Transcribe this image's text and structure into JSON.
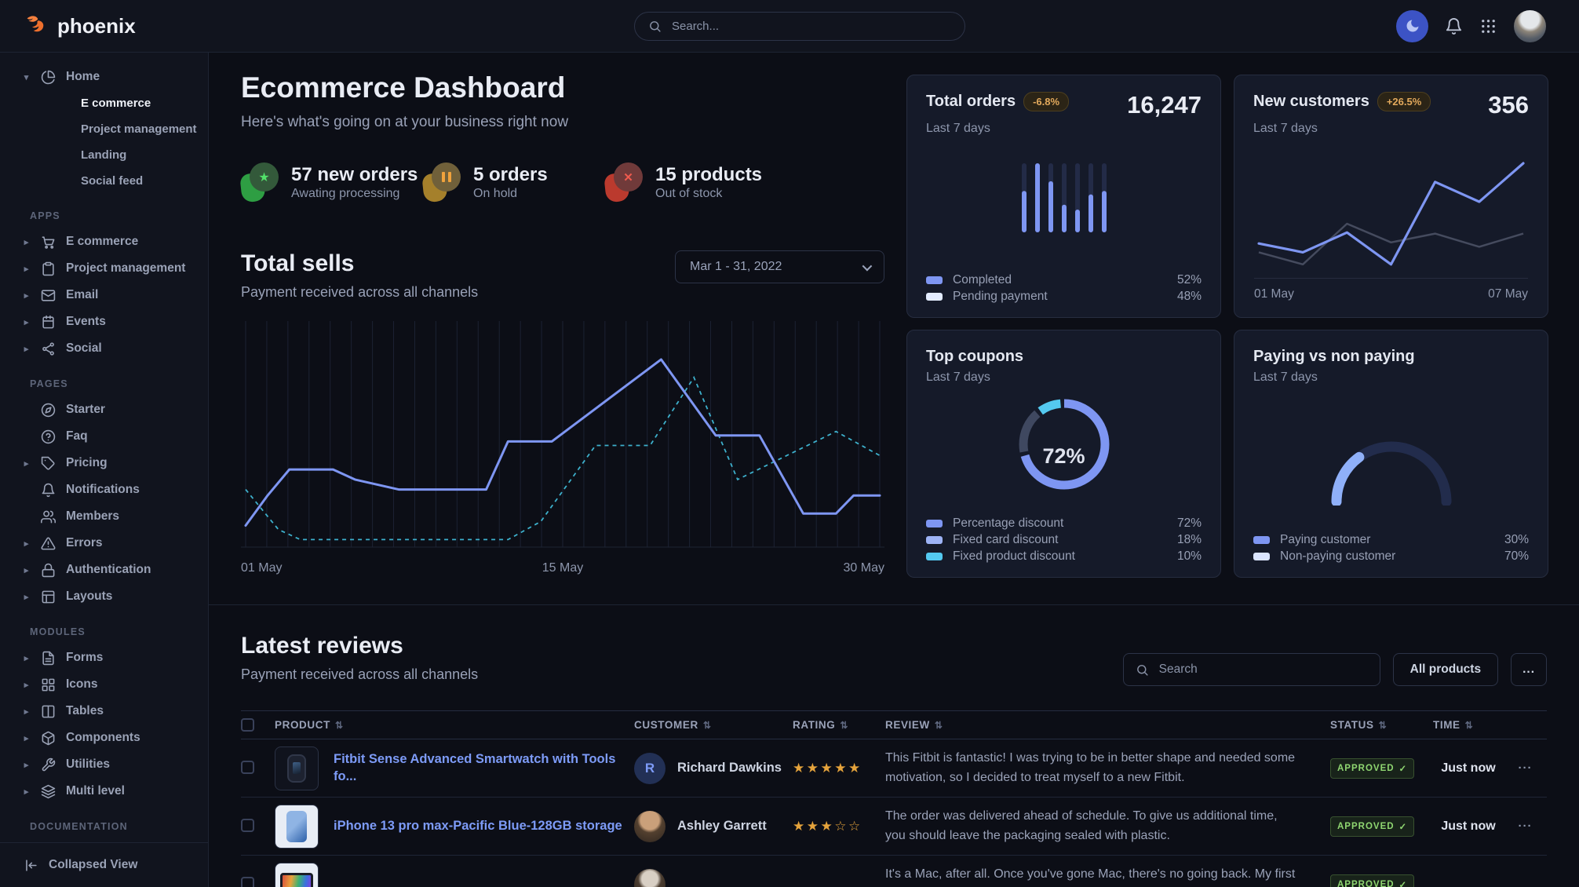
{
  "navbar": {
    "brand": "phoenix",
    "search_placeholder": "Search..."
  },
  "sidebar": {
    "home": {
      "label": "Home",
      "children": [
        {
          "label": "E commerce",
          "active": true
        },
        {
          "label": "Project management",
          "active": false
        },
        {
          "label": "Landing",
          "active": false
        },
        {
          "label": "Social feed",
          "active": false
        }
      ]
    },
    "sections": [
      {
        "label": "APPS",
        "items": [
          {
            "label": "E commerce",
            "icon": "cart",
            "caret": true
          },
          {
            "label": "Project management",
            "icon": "clipboard",
            "caret": true
          },
          {
            "label": "Email",
            "icon": "mail",
            "caret": true
          },
          {
            "label": "Events",
            "icon": "calendar",
            "caret": true
          },
          {
            "label": "Social",
            "icon": "share",
            "caret": true
          }
        ]
      },
      {
        "label": "PAGES",
        "items": [
          {
            "label": "Starter",
            "icon": "compass",
            "caret": false
          },
          {
            "label": "Faq",
            "icon": "help",
            "caret": false
          },
          {
            "label": "Pricing",
            "icon": "tag",
            "caret": true
          },
          {
            "label": "Notifications",
            "icon": "bell",
            "caret": false
          },
          {
            "label": "Members",
            "icon": "users",
            "caret": false
          },
          {
            "label": "Errors",
            "icon": "alert",
            "caret": true
          },
          {
            "label": "Authentication",
            "icon": "lock",
            "caret": true
          },
          {
            "label": "Layouts",
            "icon": "layout",
            "caret": true
          }
        ]
      },
      {
        "label": "MODULES",
        "items": [
          {
            "label": "Forms",
            "icon": "file",
            "caret": true
          },
          {
            "label": "Icons",
            "icon": "grid",
            "caret": true
          },
          {
            "label": "Tables",
            "icon": "columns",
            "caret": true
          },
          {
            "label": "Components",
            "icon": "box",
            "caret": true
          },
          {
            "label": "Utilities",
            "icon": "wrench",
            "caret": true
          },
          {
            "label": "Multi level",
            "icon": "layers",
            "caret": true
          }
        ]
      },
      {
        "label": "DOCUMENTATION",
        "items": []
      }
    ],
    "footer_label": "Collapsed View"
  },
  "hero": {
    "title": "Ecommerce Dashboard",
    "subtitle": "Here's what's going on at your business right now",
    "stats": [
      {
        "value": "57 new orders",
        "label": "Awating processing",
        "tone": "success"
      },
      {
        "value": "5 orders",
        "label": "On hold",
        "tone": "warning"
      },
      {
        "value": "15 products",
        "label": "Out of stock",
        "tone": "danger"
      }
    ],
    "total_sells": {
      "title": "Total sells",
      "subtitle": "Payment received across all channels",
      "date_range": "Mar 1 - 31, 2022"
    }
  },
  "cards": {
    "total_orders": {
      "title": "Total orders",
      "badge": "-6.8%",
      "period": "Last 7 days",
      "value": "16,247",
      "legend": [
        {
          "label": "Completed",
          "pct": "52%",
          "color": "#7e96f2"
        },
        {
          "label": "Pending payment",
          "pct": "48%",
          "color": "#e3ecff"
        }
      ]
    },
    "new_customers": {
      "title": "New customers",
      "badge": "+26.5%",
      "period": "Last 7 days",
      "value": "356"
    },
    "top_coupons": {
      "title": "Top coupons",
      "period": "Last 7 days",
      "legend": [
        {
          "label": "Percentage discount",
          "pct": "72%",
          "color": "#7e96f2"
        },
        {
          "label": "Fixed card discount",
          "pct": "18%",
          "color": "#9db3f5"
        },
        {
          "label": "Fixed product discount",
          "pct": "10%",
          "color": "#54c9f0"
        }
      ]
    },
    "paying": {
      "title": "Paying vs non paying",
      "period": "Last 7 days",
      "legend": [
        {
          "label": "Paying customer",
          "pct": "30%",
          "color": "#7e96f2"
        },
        {
          "label": "Non-paying customer",
          "pct": "70%",
          "color": "#dbe5ff"
        }
      ]
    }
  },
  "chart_data": [
    {
      "id": "total_sells",
      "type": "line",
      "title": "Total sells",
      "x_ticks": [
        "01 May",
        "15 May",
        "30 May"
      ],
      "x_range": [
        1,
        30
      ],
      "ylim": [
        0,
        100
      ],
      "grid": "vertical-only",
      "series": [
        {
          "name": "current",
          "style": "solid",
          "color": "#7e96f2",
          "points": [
            [
              1,
              10
            ],
            [
              2,
              25
            ],
            [
              3,
              38
            ],
            [
              5,
              38
            ],
            [
              6,
              33
            ],
            [
              8,
              28
            ],
            [
              12,
              28
            ],
            [
              13,
              52
            ],
            [
              15,
              52
            ],
            [
              20,
              93
            ],
            [
              22.5,
              55
            ],
            [
              24.5,
              55
            ],
            [
              26.5,
              16
            ],
            [
              28,
              16
            ],
            [
              28.8,
              25
            ],
            [
              30,
              25
            ]
          ]
        },
        {
          "name": "previous",
          "style": "dashed",
          "color": "#43c2e0",
          "points": [
            [
              1,
              28
            ],
            [
              2.5,
              8
            ],
            [
              3.5,
              3
            ],
            [
              13,
              3
            ],
            [
              14.5,
              12
            ],
            [
              17,
              50
            ],
            [
              19.5,
              50
            ],
            [
              21.5,
              84
            ],
            [
              23.5,
              33
            ],
            [
              28,
              57
            ],
            [
              30,
              45
            ]
          ]
        }
      ]
    },
    {
      "id": "total_orders_bars",
      "type": "bar",
      "values_pct": [
        60,
        100,
        74,
        40,
        33,
        55,
        60
      ],
      "bar_color": "#7e96f2",
      "track_color": "#232b47",
      "legend_totals": {
        "Completed": "52%",
        "Pending payment": "48%"
      }
    },
    {
      "id": "new_customers",
      "type": "line",
      "x_ticks": [
        "01 May",
        "07 May"
      ],
      "ylim": [
        0,
        100
      ],
      "series": [
        {
          "name": "previous",
          "color": "#454b5e",
          "values": [
            14,
            3,
            40,
            23,
            31,
            19,
            31
          ]
        },
        {
          "name": "current",
          "color": "#7e96f2",
          "values": [
            22,
            14,
            32,
            3,
            78,
            60,
            95
          ]
        }
      ]
    },
    {
      "id": "top_coupons",
      "type": "donut",
      "center_label": "72%",
      "slices": [
        {
          "label": "Percentage discount",
          "value": 72,
          "color": "#7e96f2"
        },
        {
          "label": "Fixed card discount",
          "value": 18,
          "color": "#3f4860"
        },
        {
          "label": "Fixed product discount",
          "value": 10,
          "color": "#54c9f0"
        }
      ]
    },
    {
      "id": "paying_gauge",
      "type": "gauge",
      "slices": [
        {
          "label": "Paying customer",
          "value": 30,
          "color": "#8fb0f9"
        },
        {
          "label": "Non-paying customer",
          "value": 70,
          "color": "#222c4c"
        }
      ]
    }
  ],
  "reviews": {
    "title": "Latest reviews",
    "subtitle": "Payment received across all channels",
    "search_placeholder": "Search",
    "filter_label": "All products",
    "menu_label": "...",
    "columns": [
      "PRODUCT",
      "CUSTOMER",
      "RATING",
      "REVIEW",
      "STATUS",
      "TIME"
    ],
    "rows": [
      {
        "thumb": "watch",
        "product": "Fitbit Sense Advanced Smartwatch with Tools fo...",
        "customer": "Richard Dawkins",
        "avatar": "init",
        "avatar_text": "R",
        "rating": 5,
        "review": "This Fitbit is fantastic! I was trying to be in better shape and needed some motivation, so I decided to treat myself to a new Fitbit.",
        "status": "APPROVED",
        "time": "Just now"
      },
      {
        "thumb": "phone",
        "product": "iPhone 13 pro max-Pacific Blue-128GB storage",
        "customer": "Ashley Garrett",
        "avatar": "p1",
        "avatar_text": "",
        "rating": 3,
        "review": "The order was delivered ahead of schedule. To give us additional time, you should leave the packaging sealed with plastic.",
        "status": "APPROVED",
        "time": "Just now"
      },
      {
        "thumb": "laptop",
        "product": "",
        "customer": "",
        "avatar": "p2",
        "avatar_text": "",
        "rating": 0,
        "review": "It's a Mac, after all. Once you've gone Mac, there's no going back. My first Mac lasted",
        "status": "APPROVED",
        "time": ""
      }
    ]
  }
}
